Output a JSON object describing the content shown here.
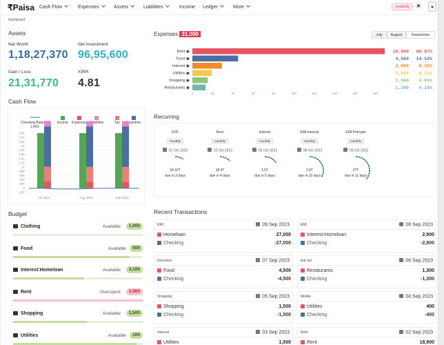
{
  "nav": {
    "logo": "Paisa",
    "items": [
      "Cash Flow",
      "Expenses",
      "Assets",
      "Liabilities",
      "Income",
      "Ledger",
      "More"
    ],
    "readonly": "readonly"
  },
  "breadcrumb": "Dashboard",
  "assets": {
    "title": "Assets",
    "net_worth_label": "Net Worth",
    "net_worth": "1,18,27,370",
    "net_investment_label": "Net Investment",
    "net_investment": "96,95,600",
    "gain_label": "Gain / Loss",
    "gain": "21,31,770",
    "xirr_label": "XIRR",
    "xirr": "4.81"
  },
  "expenses": {
    "title": "Expenses",
    "total": "31,000",
    "months": [
      "July",
      "August",
      "September"
    ],
    "selected_month": "September",
    "ticks": [
      "0",
      "2T",
      "4T",
      "6T",
      "8T",
      "10T",
      "12T",
      "14T",
      "16T",
      "18T"
    ],
    "rows": [
      {
        "label": "Rent",
        "icon": "home-icon",
        "value": 18900,
        "amount": "18,900",
        "pct": "60.97%",
        "color": "#e6555f"
      },
      {
        "label": "Food",
        "icon": "food-icon",
        "value": 4500,
        "amount": "4,500",
        "pct": "14.52%",
        "color": "#4b6fa5"
      },
      {
        "label": "Interest",
        "icon": "anchor-icon",
        "value": 2900,
        "amount": "2,900",
        "pct": "9.35%",
        "color": "#f28c28"
      },
      {
        "label": "Utilities",
        "icon": "utilities-icon",
        "value": 1900,
        "amount": "1,900",
        "pct": "6.13%",
        "color": "#f2c94c"
      },
      {
        "label": "Shopping",
        "icon": "cart-icon",
        "value": 1500,
        "amount": "1,500",
        "pct": "4.84%",
        "color": "#8ec77a"
      },
      {
        "label": "Restaurants",
        "icon": "cutlery-icon",
        "value": 1300,
        "amount": "1,300",
        "pct": "4.19%",
        "color": "#6fb8ae"
      }
    ]
  },
  "cashflow": {
    "title": "Cash Flow",
    "chart_data": {
      "type": "bar",
      "legend": [
        "Checking Balance",
        "Income",
        "Expenses",
        "Liabilities",
        "Tax",
        "Investme"
      ],
      "legend_value": "1,463",
      "y_ticks": [
        "2.6L",
        "2.4L",
        "2.2L",
        "2L",
        "1.8L",
        "1.6L",
        "1.4L",
        "1.2L",
        "1L",
        "80T",
        "60T",
        "40T",
        "20T",
        "0",
        "-20T"
      ],
      "categories": [
        "Jul 2023",
        "Aug 2023",
        "Sep 2023"
      ],
      "series": [
        {
          "name": "Income",
          "color": "#53a653",
          "values": [
            260000,
            260000,
            260000
          ]
        },
        {
          "name": "Expenses",
          "color": "#e6555f",
          "values": [
            32000,
            31000,
            31000
          ]
        },
        {
          "name": "Liabilities",
          "color": "#e688c8",
          "values": [
            0,
            0,
            0
          ]
        },
        {
          "name": "Tax",
          "color": "#f07b7b",
          "values": [
            70000,
            70000,
            70000
          ]
        },
        {
          "name": "Investme",
          "color": "#4b6fa5",
          "values": [
            190000,
            190000,
            190000
          ]
        }
      ]
    }
  },
  "recurring": {
    "title": "Recurring",
    "items": [
      {
        "name": "EPF",
        "freq": "monthly",
        "date": "01 Oct 2023",
        "amount": "24.33T",
        "due": "due in 3 days",
        "progress": 0.1
      },
      {
        "name": "Rent",
        "freq": "monthly",
        "date": "02 Oct 2023",
        "amount": "18.9T",
        "due": "due in 4 days",
        "progress": 0.13
      },
      {
        "name": "Internet",
        "freq": "monthly",
        "date": "03 Oct 2023",
        "amount": "1.5T",
        "due": "due in 5 days",
        "progress": 0.16
      },
      {
        "name": "EMI:Interest",
        "freq": "monthly",
        "date": "08 Oct 2023",
        "amount": "2.9T",
        "due": "due in 10 days",
        "progress": 0.33
      },
      {
        "name": "EMI:Principle",
        "freq": "monthly",
        "date": "09 Oct 2023",
        "amount": "2?T",
        "due": "due in 11 days",
        "progress": 0.36
      }
    ]
  },
  "budget": {
    "title": "Budget",
    "items": [
      {
        "name": "Clothing",
        "status": "Available",
        "amount": "1,000",
        "over": false,
        "fill": 0.0
      },
      {
        "name": "Food",
        "status": "Available",
        "amount": "500",
        "over": false,
        "fill": 0.9
      },
      {
        "name": "Interest:Homeloan",
        "status": "Available",
        "amount": "3,100",
        "over": false,
        "fill": 0.55
      },
      {
        "name": "Rent",
        "status": "Overspent",
        "amount": "3,900",
        "over": true,
        "fill": 1.0
      },
      {
        "name": "Shopping",
        "status": "Available",
        "amount": "1,500",
        "over": false,
        "fill": 0.57
      },
      {
        "name": "Utilities",
        "status": "Available",
        "amount": "100",
        "over": false,
        "fill": 0.95
      }
    ]
  },
  "transactions": {
    "title": "Recent Transactions",
    "items": [
      {
        "cat": "EMI",
        "date": "09 Sep 2023",
        "lines": [
          {
            "acc": "Homeloan",
            "amt": "27,000",
            "neg": false
          },
          {
            "acc": "Checking",
            "amt": "-27,000",
            "neg": true
          }
        ]
      },
      {
        "cat": "EMI",
        "date": "08 Sep 2023",
        "lines": [
          {
            "acc": "Interest:Homeloan",
            "amt": "2,900",
            "neg": false
          },
          {
            "acc": "Checking",
            "amt": "-2,900",
            "neg": true
          }
        ]
      },
      {
        "cat": "Groceries",
        "date": "07 Sep 2023",
        "lines": [
          {
            "acc": "Food",
            "amt": "4,500",
            "neg": false
          },
          {
            "acc": "Checking",
            "amt": "-4,500",
            "neg": true
          }
        ]
      },
      {
        "cat": "Eat out",
        "date": "06 Sep 2023",
        "lines": [
          {
            "acc": "Restaurants",
            "amt": "1,300",
            "neg": false
          },
          {
            "acc": "Checking",
            "amt": "-1,300",
            "neg": true
          }
        ]
      },
      {
        "cat": "Shopping",
        "date": "05 Sep 2023",
        "lines": [
          {
            "acc": "Shopping",
            "amt": "1,500",
            "neg": false
          },
          {
            "acc": "Checking",
            "amt": "-1,500",
            "neg": true
          }
        ]
      },
      {
        "cat": "Mobile",
        "date": "04 Sep 2023",
        "lines": [
          {
            "acc": "Utilities",
            "amt": "400",
            "neg": false
          },
          {
            "acc": "Checking",
            "amt": "-400",
            "neg": true
          }
        ]
      },
      {
        "cat": "Internet",
        "date": "03 Sep 2023",
        "lines": [
          {
            "acc": "Utilities",
            "amt": "1,500",
            "neg": false
          }
        ]
      },
      {
        "cat": "Rent",
        "date": "02 Sep 2023",
        "lines": [
          {
            "acc": "Rent",
            "amt": "18,900",
            "neg": false
          }
        ]
      }
    ]
  }
}
